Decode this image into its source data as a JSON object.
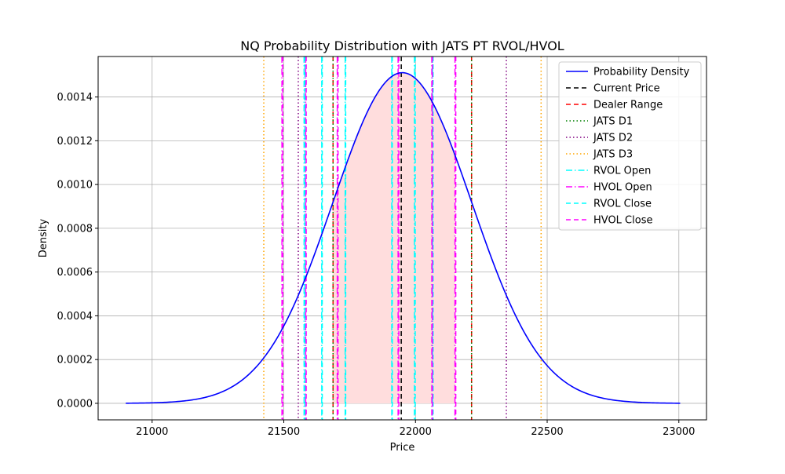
{
  "chart_data": {
    "type": "line",
    "title": "NQ Probability Distribution with JATS PT RVOL/HVOL",
    "xlabel": "Price",
    "ylabel": "Density",
    "xlim": [
      20795,
      23105
    ],
    "ylim": [
      -7.55e-05,
      0.001585
    ],
    "xticks": [
      21000,
      21500,
      22000,
      22500,
      23000
    ],
    "xtick_labels": [
      "21000",
      "21500",
      "22000",
      "22500",
      "23000"
    ],
    "yticks": [
      0,
      0.0002,
      0.0004,
      0.0006,
      0.0008,
      0.001,
      0.0012,
      0.0014
    ],
    "ytick_labels": [
      "0.0000",
      "0.0002",
      "0.0004",
      "0.0006",
      "0.0008",
      "0.0010",
      "0.0012",
      "0.0014"
    ],
    "grid": true,
    "legend_position": "top-right",
    "distribution": {
      "mean": 21950,
      "std": 264,
      "x_min": 20900,
      "x_max": 23005
    },
    "shaded_region": {
      "x_start": 21685,
      "x_end": 22150,
      "color": "#ffdddd"
    },
    "colors": {
      "density": "#0000ff",
      "current": "#000000",
      "dealer": "#ff0000",
      "d1": "#008000",
      "d2": "#800080",
      "d3": "#ffa500",
      "rvol": "#00ffff",
      "hvol": "#ff00ff",
      "grid": "#b0b0b0"
    },
    "series": [
      {
        "name": "Probability Density",
        "style": "solid",
        "color_key": "density"
      },
      {
        "name": "Current Price",
        "style": "dashed",
        "color_key": "current",
        "x": [
          21946
        ]
      },
      {
        "name": "Dealer Range",
        "style": "dashed",
        "color_key": "dealer",
        "x": [
          21687,
          22213
        ]
      },
      {
        "name": "JATS D1",
        "style": "dotted",
        "color_key": "d1",
        "x": [
          21687,
          22213
        ]
      },
      {
        "name": "JATS D2",
        "style": "dotted",
        "color_key": "d2",
        "x": [
          21555,
          22345
        ]
      },
      {
        "name": "JATS D3",
        "style": "dotted",
        "color_key": "d3",
        "x": [
          21424,
          22477
        ]
      },
      {
        "name": "RVOL Open",
        "style": "dashdot",
        "color_key": "rvol",
        "x": [
          21577,
          21644,
          21733,
          21910,
          21996,
          22065
        ]
      },
      {
        "name": "HVOL Open",
        "style": "dashdot",
        "color_key": "hvol",
        "x": [
          21493,
          21583,
          21703,
          21934,
          22062,
          22150
        ]
      },
      {
        "name": "RVOL Close",
        "style": "dashed",
        "color_key": "rvol",
        "x": [
          21580,
          21646,
          21735,
          21912,
          21999,
          22067
        ]
      },
      {
        "name": "HVOL Close",
        "style": "dashed",
        "color_key": "hvol",
        "x": [
          21496,
          21585,
          21706,
          21937,
          22064,
          22153
        ]
      }
    ]
  }
}
